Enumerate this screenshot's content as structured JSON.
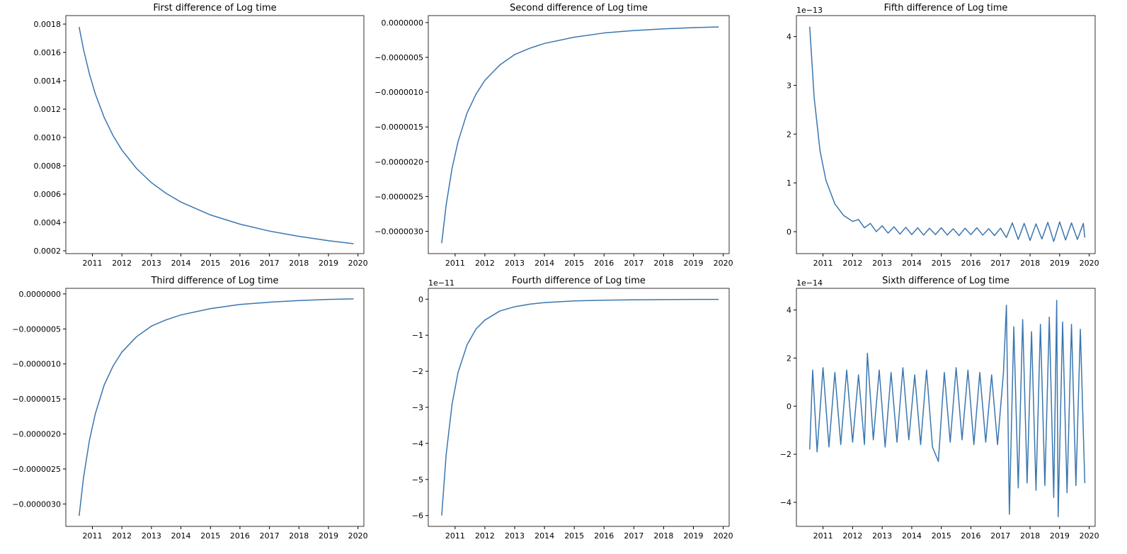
{
  "chart_data": [
    {
      "type": "line",
      "title": "First difference of Log time",
      "xlim": [
        2010.1,
        2020.2
      ],
      "xticks": [
        2011,
        2012,
        2013,
        2014,
        2015,
        2016,
        2017,
        2018,
        2019,
        2020
      ],
      "ylim": [
        0.00018,
        0.00186
      ],
      "yticks": [
        0.0002,
        0.0004,
        0.0006,
        0.0008,
        {
          "value": 0.001,
          "label": "0.0010"
        },
        0.0012,
        0.0014,
        0.0016,
        0.0018
      ],
      "series": [
        {
          "color": "#3a76af",
          "x": [
            2010.55,
            2010.7,
            2010.9,
            2011.1,
            2011.4,
            2011.7,
            2012.0,
            2012.5,
            2013,
            2013.5,
            2014,
            2015,
            2016,
            2017,
            2018,
            2019,
            2019.85
          ],
          "values": [
            0.00178,
            0.00162,
            0.001447,
            0.001307,
            0.001141,
            0.001013,
            0.000911,
            0.00078,
            0.000681,
            0.000605,
            0.000544,
            0.000453,
            0.000388,
            0.000339,
            0.000302,
            0.000271,
            0.00025
          ]
        }
      ]
    },
    {
      "type": "line",
      "title": "Second difference of Log time",
      "xlim": [
        2010.1,
        2020.2
      ],
      "xticks": [
        2011,
        2012,
        2013,
        2014,
        2015,
        2016,
        2017,
        2018,
        2019,
        2020
      ],
      "ylim": [
        -3.32e-06,
        1e-07
      ],
      "yticks": [
        {
          "value": -3e-06,
          "label": "−0.0000030"
        },
        {
          "value": -2.5e-06,
          "label": "−0.0000025"
        },
        {
          "value": -2e-06,
          "label": "−0.0000020"
        },
        {
          "value": -1.5e-06,
          "label": "−0.0000015"
        },
        {
          "value": -1e-06,
          "label": "−0.0000010"
        },
        {
          "value": -5e-07,
          "label": "−0.0000005"
        },
        {
          "value": 0,
          "label": "0.0000000"
        }
      ],
      "series": [
        {
          "color": "#3a76af",
          "x": [
            2010.55,
            2010.7,
            2010.9,
            2011.1,
            2011.4,
            2011.7,
            2012.0,
            2012.5,
            2013,
            2013.5,
            2014,
            2015,
            2016,
            2017,
            2018,
            2019,
            2019.85
          ],
          "values": [
            -3.17e-06,
            -2.62e-06,
            -2.09e-06,
            -1.71e-06,
            -1.3e-06,
            -1.03e-06,
            -8.3e-07,
            -6.1e-07,
            -4.6e-07,
            -3.7e-07,
            -3e-07,
            -2.1e-07,
            -1.5e-07,
            -1.15e-07,
            -9.1e-08,
            -7.3e-08,
            -6.3e-08
          ]
        }
      ]
    },
    {
      "type": "line",
      "title": "Fifth difference of Log time",
      "offset_label": "1e−13",
      "xlim": [
        2010.1,
        2020.2
      ],
      "xticks": [
        2011,
        2012,
        2013,
        2014,
        2015,
        2016,
        2017,
        2018,
        2019,
        2020
      ],
      "ylim": [
        -0.45,
        4.43
      ],
      "yticks": [
        0,
        1,
        2,
        3,
        4
      ],
      "series": [
        {
          "color": "#3a76af",
          "x": [
            2010.55,
            2010.7,
            2010.9,
            2011.1,
            2011.4,
            2011.7,
            2012.0,
            2012.2,
            2012.4,
            2012.6,
            2012.8,
            2013.0,
            2013.2,
            2013.4,
            2013.6,
            2013.8,
            2014.0,
            2014.2,
            2014.4,
            2014.6,
            2014.8,
            2015.0,
            2015.2,
            2015.4,
            2015.6,
            2015.8,
            2016.0,
            2016.2,
            2016.4,
            2016.6,
            2016.8,
            2017.0,
            2017.2,
            2017.4,
            2017.6,
            2017.8,
            2018.0,
            2018.2,
            2018.4,
            2018.6,
            2018.8,
            2019.0,
            2019.2,
            2019.4,
            2019.6,
            2019.8,
            2019.85
          ],
          "values": [
            4.2,
            2.75,
            1.65,
            1.05,
            0.57,
            0.33,
            0.21,
            0.25,
            0.08,
            0.17,
            0.0,
            0.12,
            -0.03,
            0.1,
            -0.05,
            0.09,
            -0.06,
            0.08,
            -0.07,
            0.07,
            -0.06,
            0.08,
            -0.07,
            0.06,
            -0.08,
            0.07,
            -0.06,
            0.08,
            -0.07,
            0.06,
            -0.08,
            0.07,
            -0.12,
            0.18,
            -0.16,
            0.17,
            -0.18,
            0.16,
            -0.15,
            0.19,
            -0.2,
            0.2,
            -0.17,
            0.18,
            -0.16,
            0.17,
            -0.12
          ]
        }
      ]
    },
    {
      "type": "line",
      "title": "Third difference of Log time",
      "xlim": [
        2010.1,
        2020.2
      ],
      "xticks": [
        2011,
        2012,
        2013,
        2014,
        2015,
        2016,
        2017,
        2018,
        2019,
        2020
      ],
      "ylim": [
        -3.32e-06,
        8e-08
      ],
      "yticks": [
        {
          "value": -3e-06,
          "label": "−0.0000030"
        },
        {
          "value": -2.5e-06,
          "label": "−0.0000025"
        },
        {
          "value": -2e-06,
          "label": "−0.0000020"
        },
        {
          "value": -1.5e-06,
          "label": "−0.0000015"
        },
        {
          "value": -1e-06,
          "label": "−0.0000010"
        },
        {
          "value": -5e-07,
          "label": "−0.0000005"
        },
        {
          "value": 0,
          "label": "0.0000000"
        }
      ],
      "series": [
        {
          "color": "#3a76af",
          "x": [
            2010.55,
            2010.7,
            2010.9,
            2011.1,
            2011.4,
            2011.7,
            2012.0,
            2012.5,
            2013,
            2013.5,
            2014,
            2015,
            2016,
            2017,
            2018,
            2019,
            2019.85
          ],
          "values": [
            -3.17e-06,
            -2.62e-06,
            -2.09e-06,
            -1.71e-06,
            -1.3e-06,
            -1.03e-06,
            -8.3e-07,
            -6.1e-07,
            -4.6e-07,
            -3.7e-07,
            -3e-07,
            -2.1e-07,
            -1.5e-07,
            -1.18e-07,
            -9.5e-08,
            -7.8e-08,
            -7e-08
          ]
        }
      ]
    },
    {
      "type": "line",
      "title": "Fourth difference of Log time",
      "offset_label": "1e−11",
      "xlim": [
        2010.1,
        2020.2
      ],
      "xticks": [
        2011,
        2012,
        2013,
        2014,
        2015,
        2016,
        2017,
        2018,
        2019,
        2020
      ],
      "ylim": [
        -6.3,
        0.3
      ],
      "yticks": [
        {
          "value": -6,
          "label": "−6"
        },
        {
          "value": -5,
          "label": "−5"
        },
        {
          "value": -4,
          "label": "−4"
        },
        {
          "value": -3,
          "label": "−3"
        },
        {
          "value": -2,
          "label": "−2"
        },
        {
          "value": -1,
          "label": "−1"
        },
        0
      ],
      "series": [
        {
          "color": "#3a76af",
          "x": [
            2010.55,
            2010.7,
            2010.9,
            2011.1,
            2011.4,
            2011.7,
            2012.0,
            2012.5,
            2013,
            2013.5,
            2014,
            2015,
            2016,
            2017,
            2018,
            2019,
            2019.85
          ],
          "values": [
            -6,
            -4.31,
            -2.9,
            -2.03,
            -1.27,
            -0.83,
            -0.58,
            -0.33,
            -0.21,
            -0.14,
            -0.095,
            -0.048,
            -0.029,
            -0.018,
            -0.012,
            -0.008,
            -0.006
          ]
        }
      ]
    },
    {
      "type": "line",
      "title": "Sixth difference of Log time",
      "offset_label": "1e−14",
      "xlim": [
        2010.1,
        2020.2
      ],
      "xticks": [
        2011,
        2012,
        2013,
        2014,
        2015,
        2016,
        2017,
        2018,
        2019,
        2020
      ],
      "ylim": [
        -5.0,
        4.9
      ],
      "yticks": [
        {
          "value": -4,
          "label": "−4"
        },
        {
          "value": -2,
          "label": "−2"
        },
        0,
        2,
        4
      ],
      "series": [
        {
          "color": "#3a76af",
          "x": [
            2010.55,
            2010.65,
            2010.8,
            2011.0,
            2011.2,
            2011.4,
            2011.6,
            2011.8,
            2012.0,
            2012.2,
            2012.4,
            2012.5,
            2012.7,
            2012.9,
            2013.1,
            2013.3,
            2013.5,
            2013.7,
            2013.9,
            2014.1,
            2014.3,
            2014.5,
            2014.7,
            2014.9,
            2015.1,
            2015.3,
            2015.5,
            2015.7,
            2015.9,
            2016.1,
            2016.3,
            2016.5,
            2016.7,
            2016.9,
            2017.1,
            2017.2,
            2017.3,
            2017.45,
            2017.6,
            2017.75,
            2017.9,
            2018.05,
            2018.2,
            2018.35,
            2018.5,
            2018.65,
            2018.8,
            2018.9,
            2018.95,
            2019.1,
            2019.25,
            2019.4,
            2019.55,
            2019.7,
            2019.85
          ],
          "values": [
            -1.8,
            1.5,
            -1.9,
            1.6,
            -1.7,
            1.4,
            -1.6,
            1.5,
            -1.5,
            1.3,
            -1.6,
            2.2,
            -1.4,
            1.5,
            -1.7,
            1.4,
            -1.5,
            1.6,
            -1.4,
            1.3,
            -1.6,
            1.5,
            -1.7,
            -2.3,
            1.4,
            -1.5,
            1.6,
            -1.4,
            1.5,
            -1.6,
            1.4,
            -1.5,
            1.3,
            -1.6,
            1.4,
            4.2,
            -4.5,
            3.3,
            -3.4,
            3.6,
            -3.2,
            3.1,
            -3.5,
            3.4,
            -3.3,
            3.7,
            -3.8,
            4.4,
            -4.6,
            3.5,
            -3.6,
            3.4,
            -3.3,
            3.2,
            -3.2
          ]
        }
      ]
    }
  ]
}
